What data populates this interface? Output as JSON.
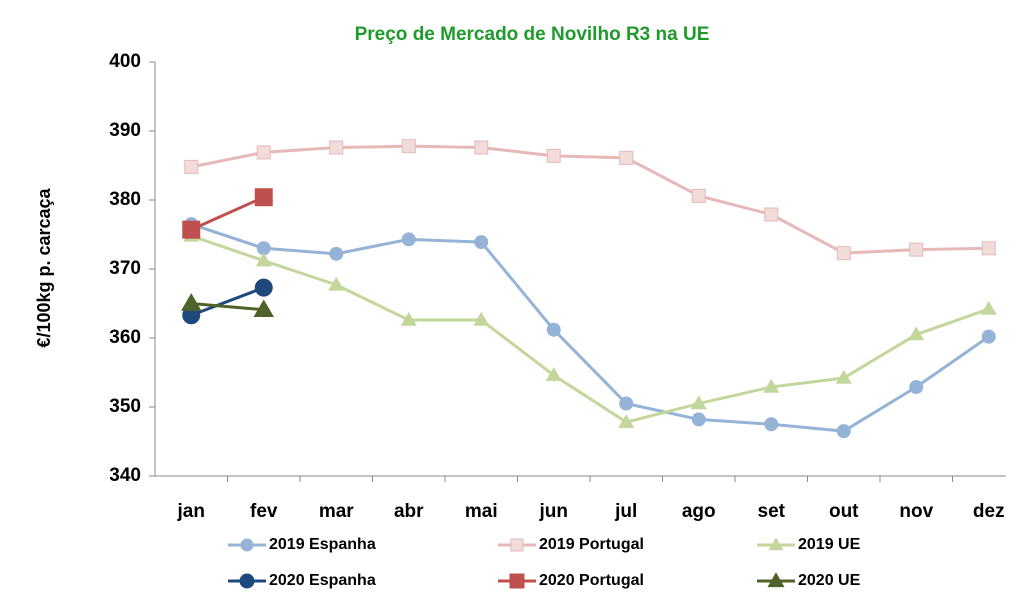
{
  "chart_data": {
    "type": "line",
    "title": "Preço de Mercado de Novilho R3 na UE",
    "y_label": "€/100kg p. carcaça",
    "categories": [
      "jan",
      "fev",
      "mar",
      "abr",
      "mai",
      "jun",
      "jul",
      "ago",
      "set",
      "out",
      "nov",
      "dez"
    ],
    "ylim": [
      340,
      400
    ],
    "yticks": [
      340,
      350,
      360,
      370,
      380,
      390,
      400
    ],
    "grid": false,
    "legend": "bottom",
    "series": [
      {
        "name": "2019 Espanha",
        "color": "#95b3d7",
        "marker": "circle",
        "values": [
          376.5,
          373.0,
          372.2,
          374.3,
          373.9,
          361.2,
          350.5,
          348.2,
          347.5,
          346.5,
          352.9,
          360.2
        ]
      },
      {
        "name": "2019 Portugal",
        "color": "#e6b9b8",
        "marker": "square",
        "values": [
          384.8,
          386.9,
          387.6,
          387.8,
          387.6,
          386.4,
          386.1,
          380.6,
          377.9,
          372.3,
          372.8,
          373.0
        ]
      },
      {
        "name": "2019 UE",
        "color": "#c3d69b",
        "marker": "triangle",
        "values": [
          374.8,
          371.2,
          367.7,
          362.6,
          362.6,
          354.6,
          347.8,
          350.5,
          352.9,
          354.2,
          360.5,
          364.2
        ]
      },
      {
        "name": "2020 Espanha",
        "color": "#1f497d",
        "marker": "circle",
        "values": [
          363.3,
          367.3,
          null,
          null,
          null,
          null,
          null,
          null,
          null,
          null,
          null,
          null
        ]
      },
      {
        "name": "2020 Portugal",
        "color": "#c0504d",
        "marker": "square",
        "values": [
          375.7,
          380.4,
          null,
          null,
          null,
          null,
          null,
          null,
          null,
          null,
          null,
          null
        ]
      },
      {
        "name": "2020 UE",
        "color": "#4f6228",
        "marker": "triangle",
        "values": [
          365.0,
          364.1,
          null,
          null,
          null,
          null,
          null,
          null,
          null,
          null,
          null,
          null
        ]
      }
    ]
  }
}
